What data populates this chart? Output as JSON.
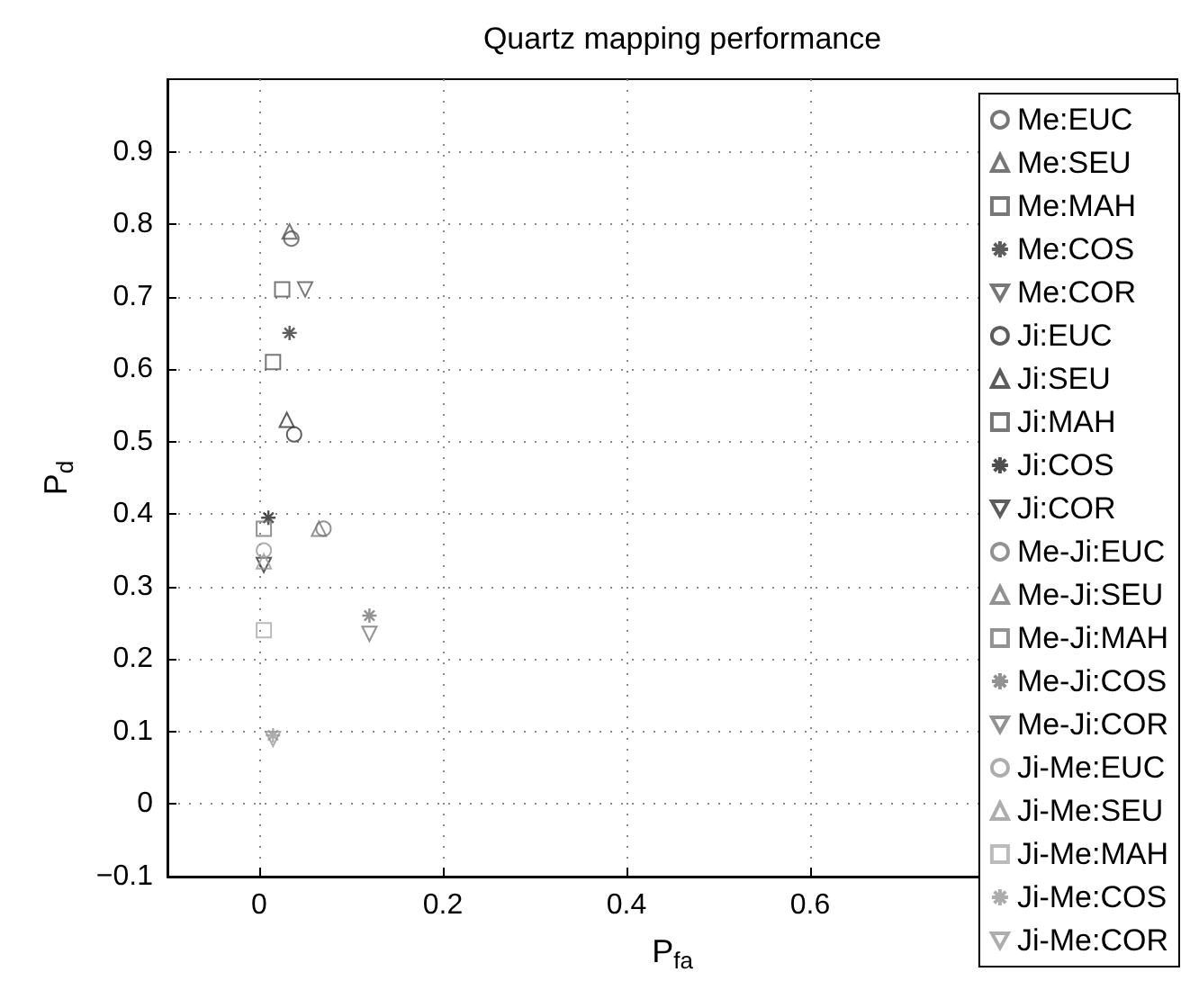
{
  "chart_data": {
    "type": "scatter",
    "title": "Quartz mapping performance",
    "xlabel": "P$_{fa}$",
    "ylabel": "P$_{d}$",
    "xlim": [
      -0.1,
      1
    ],
    "xticks": [
      0,
      0.2,
      0.4,
      0.6
    ],
    "ylim": [
      -0.1,
      1
    ],
    "yticks": [
      -0.1,
      0,
      0.1,
      0.2,
      0.3,
      0.4,
      0.5,
      0.6,
      0.7,
      0.8,
      0.9
    ],
    "grid": true,
    "legend": "right",
    "series": [
      {
        "name": "Me:EUC",
        "color": "#555555",
        "marker": "circle",
        "x": [
          0.035
        ],
        "values": [
          0.78
        ]
      },
      {
        "name": "Me:SEU",
        "color": "#555555",
        "marker": "triangle",
        "x": [
          0.033
        ],
        "values": [
          0.79
        ]
      },
      {
        "name": "Me:MAH",
        "color": "#555555",
        "marker": "square",
        "x": [
          0.025
        ],
        "values": [
          0.71
        ]
      },
      {
        "name": "Me:COS",
        "color": "#333333",
        "marker": "cross",
        "x": [
          0.033
        ],
        "values": [
          0.65
        ]
      },
      {
        "name": "Me:COR",
        "color": "#555555",
        "marker": "triangle-down",
        "x": [
          0.05
        ],
        "values": [
          0.71
        ]
      },
      {
        "name": "Ji:EUC",
        "color": "#333333",
        "marker": "circle",
        "x": [
          0.038
        ],
        "values": [
          0.51
        ]
      },
      {
        "name": "Ji:SEU",
        "color": "#333333",
        "marker": "triangle",
        "x": [
          0.03
        ],
        "values": [
          0.53
        ]
      },
      {
        "name": "Ji:MAH",
        "color": "#555555",
        "marker": "square",
        "x": [
          0.015
        ],
        "values": [
          0.61
        ]
      },
      {
        "name": "Ji:COS",
        "color": "#222222",
        "marker": "cross",
        "x": [
          0.01
        ],
        "values": [
          0.395
        ]
      },
      {
        "name": "Ji:COR",
        "color": "#333333",
        "marker": "triangle-down",
        "x": [
          0.005
        ],
        "values": [
          0.33
        ]
      },
      {
        "name": "Me-Ji:EUC",
        "color": "#777777",
        "marker": "circle",
        "x": [
          0.07
        ],
        "values": [
          0.38
        ]
      },
      {
        "name": "Me-Ji:SEU",
        "color": "#777777",
        "marker": "triangle",
        "x": [
          0.065
        ],
        "values": [
          0.38
        ]
      },
      {
        "name": "Me-Ji:MAH",
        "color": "#777777",
        "marker": "square",
        "x": [
          0.005
        ],
        "values": [
          0.38
        ]
      },
      {
        "name": "Me-Ji:COS",
        "color": "#777777",
        "marker": "cross",
        "x": [
          0.12
        ],
        "values": [
          0.26
        ]
      },
      {
        "name": "Me-Ji:COR",
        "color": "#777777",
        "marker": "triangle-down",
        "x": [
          0.12
        ],
        "values": [
          0.235
        ]
      },
      {
        "name": "Ji-Me:EUC",
        "color": "#999999",
        "marker": "circle",
        "x": [
          0.005
        ],
        "values": [
          0.35
        ]
      },
      {
        "name": "Ji-Me:SEU",
        "color": "#999999",
        "marker": "triangle",
        "x": [
          0.005
        ],
        "values": [
          0.335
        ]
      },
      {
        "name": "Ji-Me:MAH",
        "color": "#aaaaaa",
        "marker": "square",
        "x": [
          0.005
        ],
        "values": [
          0.24
        ]
      },
      {
        "name": "Ji-Me:COS",
        "color": "#999999",
        "marker": "cross",
        "x": [
          0.015
        ],
        "values": [
          0.095
        ]
      },
      {
        "name": "Ji-Me:COR",
        "color": "#999999",
        "marker": "triangle-down",
        "x": [
          0.015
        ],
        "values": [
          0.09
        ]
      }
    ]
  }
}
